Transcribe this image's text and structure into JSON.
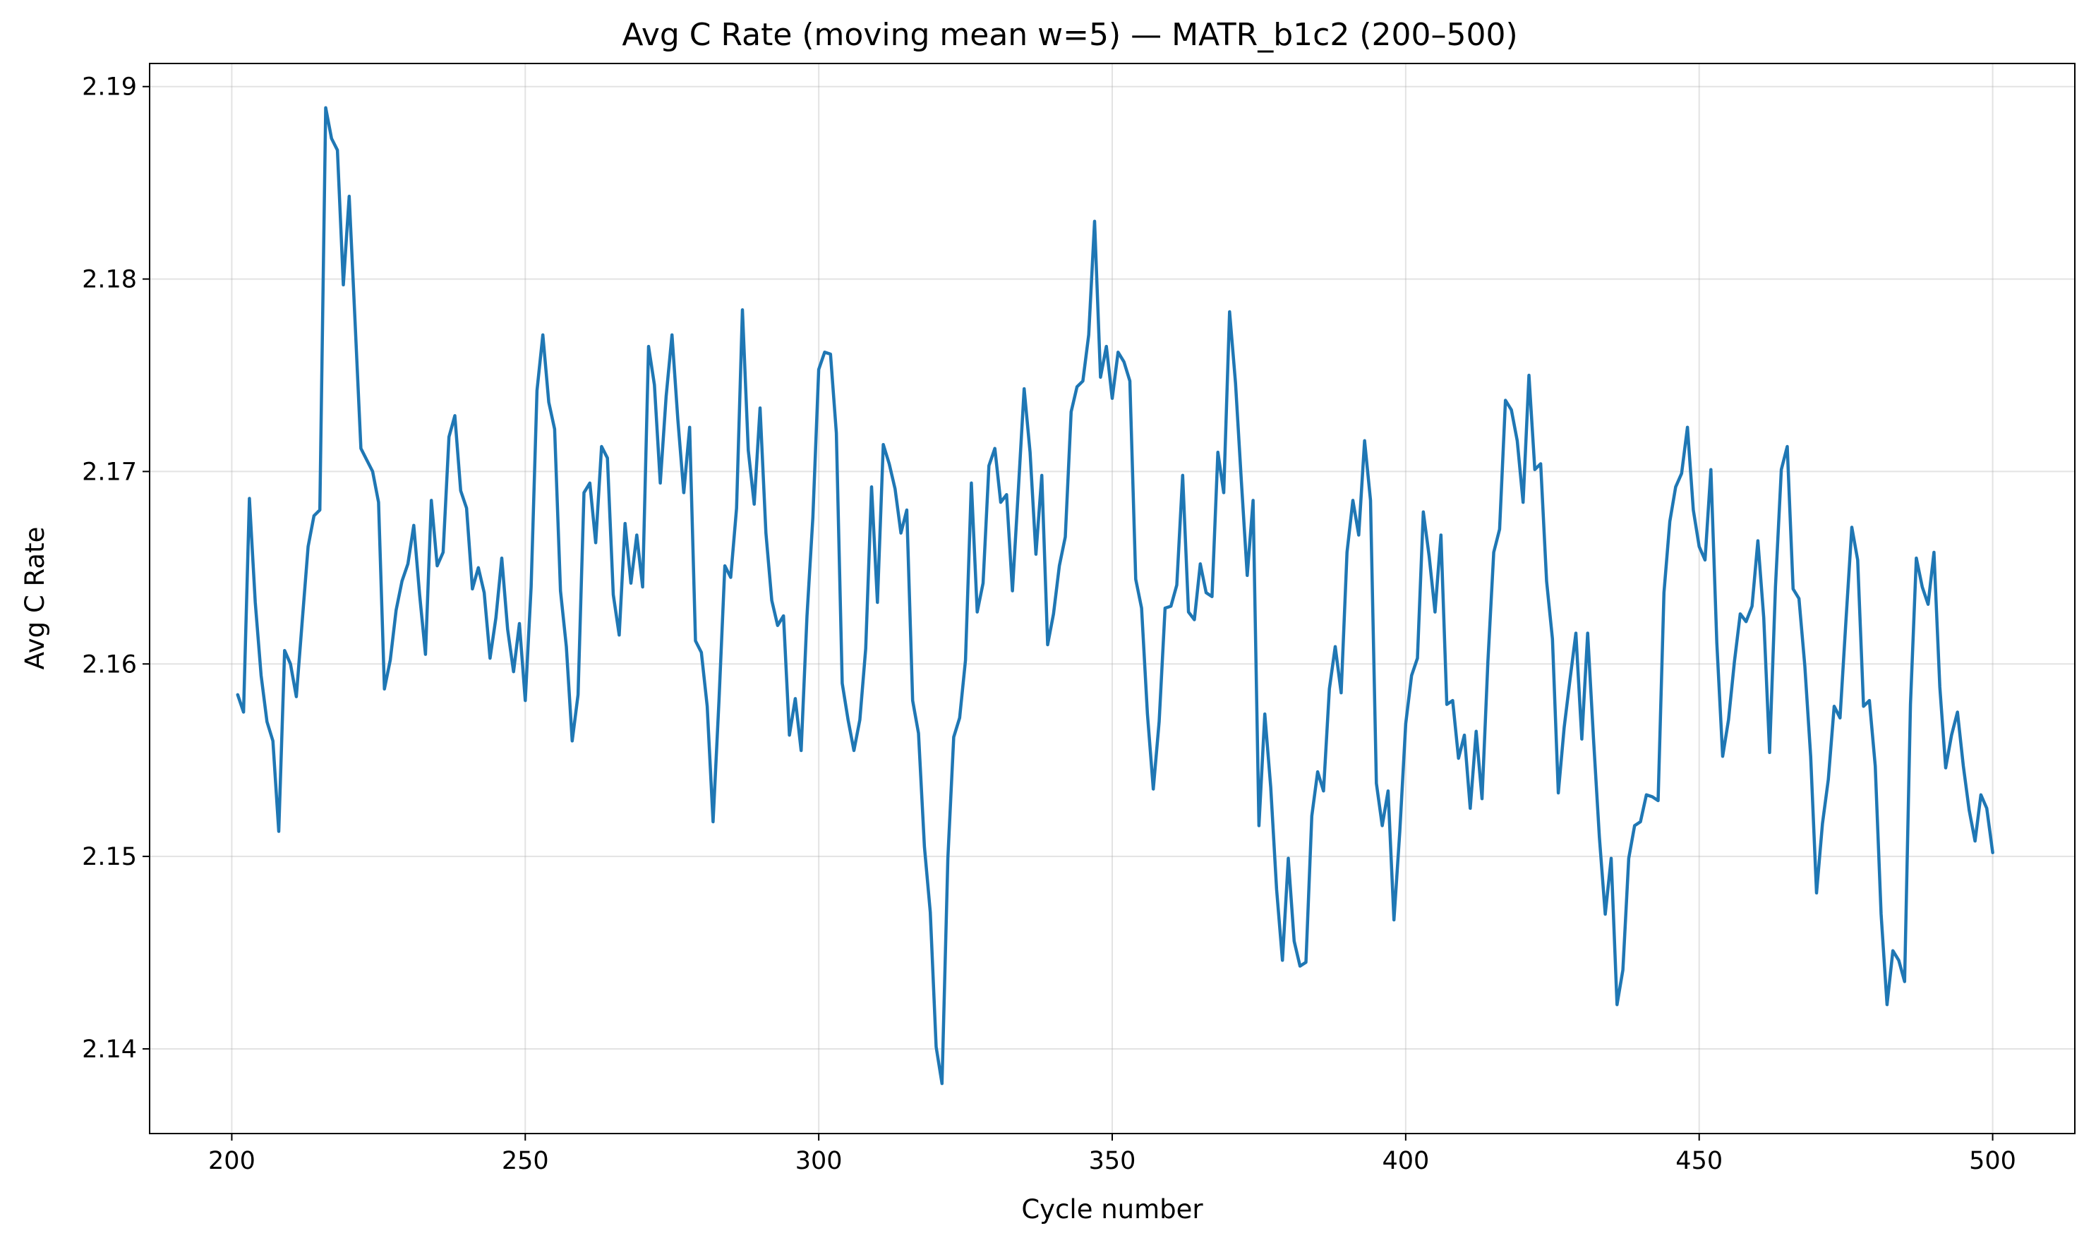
{
  "chart_data": {
    "type": "line",
    "title": "Avg C Rate (moving mean w=5) — MATR_b1c2 (200–500)",
    "xlabel": "Cycle number",
    "ylabel": "Avg C Rate",
    "xlim": [
      186,
      514
    ],
    "ylim": [
      2.1356,
      2.1912
    ],
    "xticks": [
      200,
      250,
      300,
      350,
      400,
      450,
      500
    ],
    "yticks": [
      2.14,
      2.15,
      2.16,
      2.17,
      2.18,
      2.19
    ],
    "ytick_labels": [
      "2.14",
      "2.15",
      "2.16",
      "2.17",
      "2.18",
      "2.19"
    ],
    "grid": true,
    "color": "#1f77b4",
    "series": [
      {
        "x_start": 201,
        "x_step": 1,
        "values": [
          2.1584,
          2.1575,
          2.1686,
          2.1632,
          2.1594,
          2.157,
          2.156,
          2.1513,
          2.1607,
          2.16,
          2.1583,
          2.1622,
          2.1661,
          2.1677,
          2.168,
          2.1889,
          2.1873,
          2.1867,
          2.1797,
          2.1843,
          2.1778,
          2.1712,
          2.1706,
          2.17,
          2.1684,
          2.1587,
          2.1602,
          2.1628,
          2.1643,
          2.1652,
          2.1672,
          2.1636,
          2.1605,
          2.1685,
          2.1651,
          2.1658,
          2.1718,
          2.1729,
          2.169,
          2.1681,
          2.1639,
          2.165,
          2.1637,
          2.1603,
          2.1624,
          2.1655,
          2.1618,
          2.1596,
          2.1621,
          2.1581,
          2.164,
          2.1742,
          2.1771,
          2.1736,
          2.1722,
          2.1638,
          2.1609,
          2.156,
          2.1584,
          2.1689,
          2.1694,
          2.1663,
          2.1713,
          2.1707,
          2.1636,
          2.1615,
          2.1673,
          2.1642,
          2.1667,
          2.164,
          2.1765,
          2.1745,
          2.1694,
          2.1739,
          2.1771,
          2.1727,
          2.1689,
          2.1723,
          2.1612,
          2.1606,
          2.1578,
          2.1518,
          2.1581,
          2.1651,
          2.1645,
          2.1681,
          2.1784,
          2.1711,
          2.1683,
          2.1733,
          2.1668,
          2.1633,
          2.162,
          2.1625,
          2.1563,
          2.1582,
          2.1555,
          2.1625,
          2.1676,
          2.1753,
          2.1762,
          2.1761,
          2.172,
          2.159,
          2.1571,
          2.1555,
          2.1571,
          2.1608,
          2.1692,
          2.1632,
          2.1714,
          2.1704,
          2.1691,
          2.1668,
          2.168,
          2.1581,
          2.1564,
          2.1505,
          2.1471,
          2.1401,
          2.1382,
          2.1499,
          2.1562,
          2.1572,
          2.1602,
          2.1694,
          2.1627,
          2.1642,
          2.1703,
          2.1712,
          2.1684,
          2.1688,
          2.1638,
          2.169,
          2.1743,
          2.171,
          2.1657,
          2.1698,
          2.161,
          2.1626,
          2.1651,
          2.1666,
          2.1731,
          2.1744,
          2.1747,
          2.1771,
          2.183,
          2.1749,
          2.1765,
          2.1738,
          2.1762,
          2.1757,
          2.1747,
          2.1644,
          2.1629,
          2.1574,
          2.1535,
          2.157,
          2.1629,
          2.163,
          2.1641,
          2.1698,
          2.1627,
          2.1623,
          2.1652,
          2.1637,
          2.1635,
          2.171,
          2.1689,
          2.1783,
          2.1746,
          2.1695,
          2.1646,
          2.1685,
          2.1516,
          2.1574,
          2.1536,
          2.1483,
          2.1446,
          2.1499,
          2.1456,
          2.1443,
          2.1445,
          2.1521,
          2.1544,
          2.1534,
          2.1587,
          2.1609,
          2.1585,
          2.1658,
          2.1685,
          2.1667,
          2.1716,
          2.1685,
          2.1538,
          2.1516,
          2.1534,
          2.1467,
          2.1513,
          2.1569,
          2.1594,
          2.1603,
          2.1679,
          2.1656,
          2.1627,
          2.1667,
          2.1579,
          2.1581,
          2.1551,
          2.1563,
          2.1525,
          2.1565,
          2.153,
          2.1601,
          2.1658,
          2.167,
          2.1737,
          2.1732,
          2.1716,
          2.1684,
          2.175,
          2.1701,
          2.1704,
          2.1643,
          2.1613,
          2.1533,
          2.1567,
          2.1592,
          2.1616,
          2.1561,
          2.1616,
          2.1561,
          2.151,
          2.147,
          2.1499,
          2.1423,
          2.1441,
          2.1499,
          2.1516,
          2.1518,
          2.1532,
          2.1531,
          2.1529,
          2.1637,
          2.1674,
          2.1692,
          2.1699,
          2.1723,
          2.168,
          2.1661,
          2.1654,
          2.1701,
          2.1611,
          2.1552,
          2.1571,
          2.1601,
          2.1626,
          2.1622,
          2.163,
          2.1664,
          2.1624,
          2.1554,
          2.164,
          2.1701,
          2.1713,
          2.1639,
          2.1634,
          2.1599,
          2.1552,
          2.1481,
          2.1517,
          2.154,
          2.1578,
          2.1572,
          2.1622,
          2.1671,
          2.1654,
          2.1578,
          2.1581,
          2.1547,
          2.147,
          2.1423,
          2.1451,
          2.1446,
          2.1435,
          2.1579,
          2.1655,
          2.164,
          2.1631,
          2.1658,
          2.1588,
          2.1546,
          2.1563,
          2.1575,
          2.1547,
          2.1524,
          2.1508,
          2.1532,
          2.1525,
          2.1502
        ]
      }
    ]
  }
}
